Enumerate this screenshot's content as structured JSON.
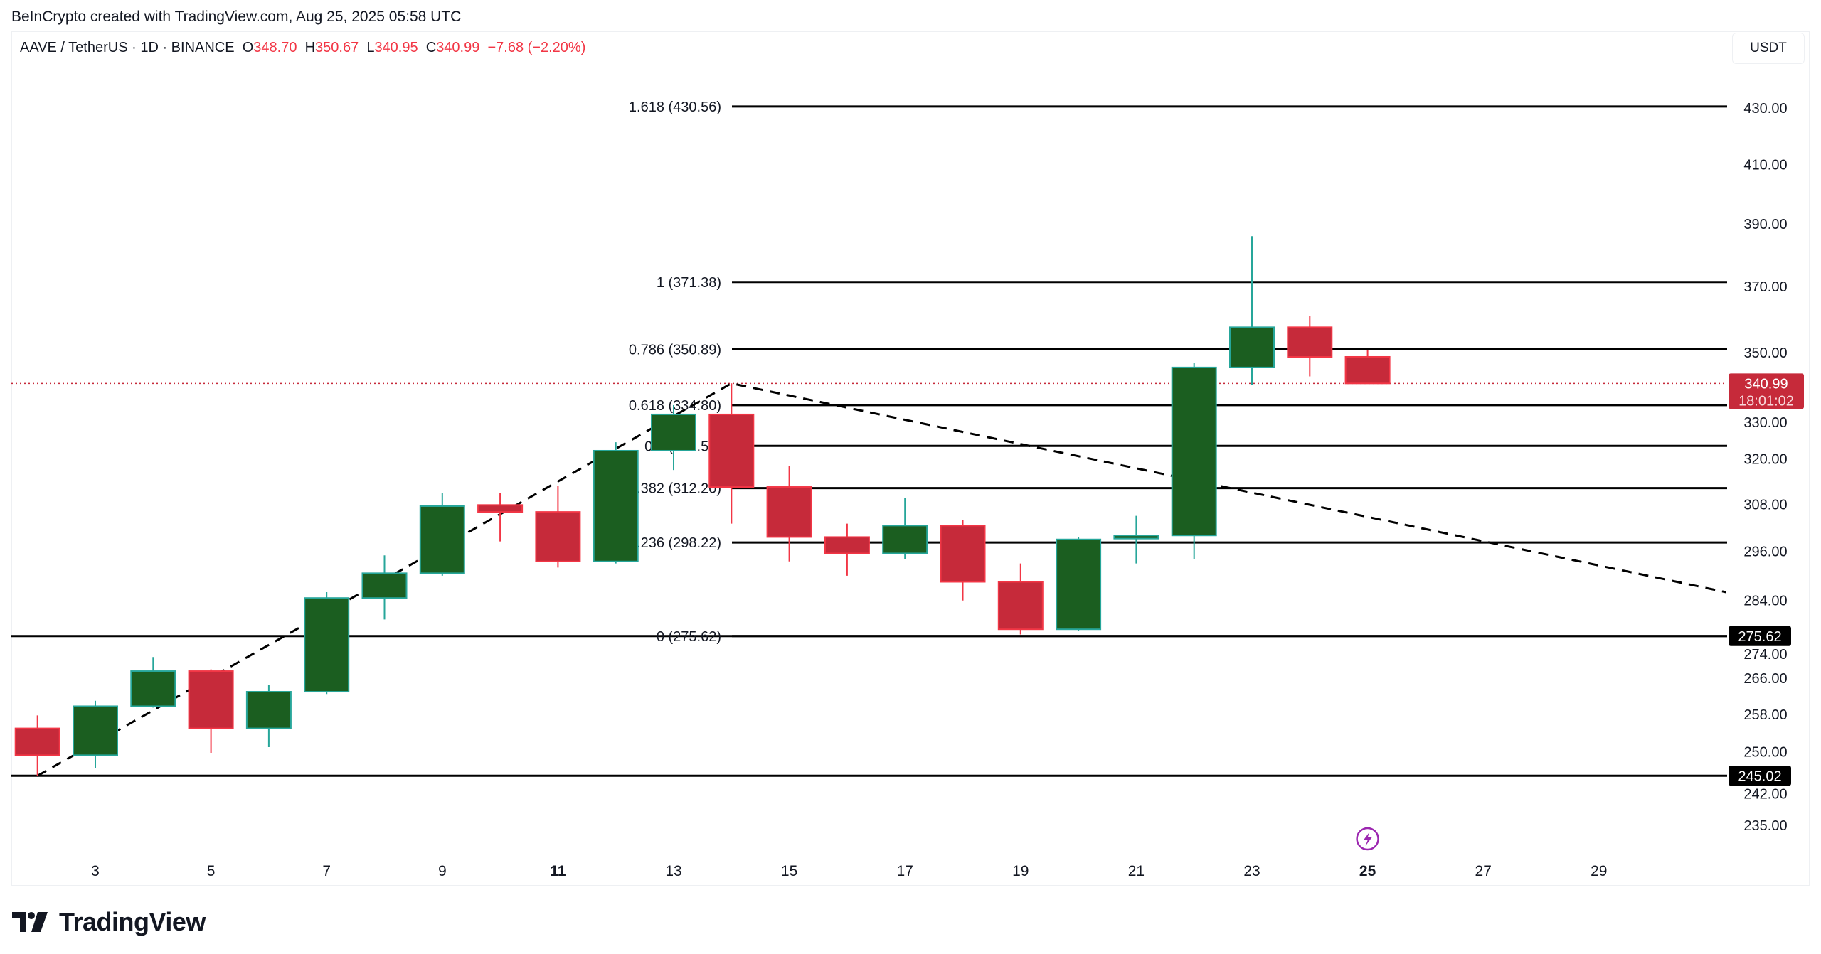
{
  "credit": "BeInCrypto created with TradingView.com, Aug 25, 2025 05:58 UTC",
  "legend": {
    "symbol": "AAVE / TetherUS · 1D · BINANCE",
    "o_label": "O",
    "o": "348.70",
    "h_label": "H",
    "h": "350.67",
    "l_label": "L",
    "l": "340.95",
    "c_label": "C",
    "c": "340.99",
    "change": "−7.68 (−2.20%)"
  },
  "currency_button": "USDT",
  "logo": "TradingView",
  "chart_data": {
    "type": "candlestick",
    "scale": "log",
    "ylim": [
      232,
      440
    ],
    "yticks": [
      "430.00",
      "410.00",
      "390.00",
      "370.00",
      "350.00",
      "330.00",
      "320.00",
      "308.00",
      "296.00",
      "284.00",
      "274.00",
      "266.00",
      "258.00",
      "250.00",
      "242.00",
      "235.00"
    ],
    "xticks": [
      {
        "label": "3",
        "day": 3
      },
      {
        "label": "5",
        "day": 5
      },
      {
        "label": "7",
        "day": 7
      },
      {
        "label": "9",
        "day": 9
      },
      {
        "label": "11",
        "day": 11,
        "bold": true
      },
      {
        "label": "13",
        "day": 13
      },
      {
        "label": "15",
        "day": 15
      },
      {
        "label": "17",
        "day": 17
      },
      {
        "label": "19",
        "day": 19
      },
      {
        "label": "21",
        "day": 21
      },
      {
        "label": "23",
        "day": 23
      },
      {
        "label": "25",
        "day": 25,
        "bold": true
      },
      {
        "label": "27",
        "day": 27
      },
      {
        "label": "29",
        "day": 29
      }
    ],
    "colors": {
      "up": "#1b5e20",
      "up_border": "#26a69a",
      "down": "#c62a3a",
      "down_wick": "#f23645",
      "text": "#131722"
    },
    "candles": [
      {
        "day": 2,
        "o": 255.0,
        "h": 257.8,
        "l": 245.0,
        "c": 249.3
      },
      {
        "day": 3,
        "o": 249.3,
        "h": 261.0,
        "l": 246.6,
        "c": 259.8
      },
      {
        "day": 4,
        "o": 259.8,
        "h": 270.8,
        "l": 259.5,
        "c": 267.6
      },
      {
        "day": 5,
        "o": 267.6,
        "h": 268.0,
        "l": 249.8,
        "c": 255.0
      },
      {
        "day": 6,
        "o": 255.0,
        "h": 264.5,
        "l": 251.0,
        "c": 263.0
      },
      {
        "day": 7,
        "o": 263.0,
        "h": 286.0,
        "l": 262.5,
        "c": 284.6
      },
      {
        "day": 8,
        "o": 284.6,
        "h": 295.0,
        "l": 279.5,
        "c": 290.6
      },
      {
        "day": 9,
        "o": 290.6,
        "h": 311.0,
        "l": 290.0,
        "c": 307.5
      },
      {
        "day": 10,
        "o": 307.8,
        "h": 311.0,
        "l": 298.5,
        "c": 306.0
      },
      {
        "day": 11,
        "o": 306.0,
        "h": 312.8,
        "l": 292.0,
        "c": 293.5
      },
      {
        "day": 12,
        "o": 293.5,
        "h": 324.5,
        "l": 293.0,
        "c": 322.2
      },
      {
        "day": 13,
        "o": 322.2,
        "h": 334.8,
        "l": 317.0,
        "c": 332.2
      },
      {
        "day": 14,
        "o": 332.2,
        "h": 341.0,
        "l": 303.0,
        "c": 312.5
      },
      {
        "day": 15,
        "o": 312.5,
        "h": 318.0,
        "l": 293.5,
        "c": 299.6
      },
      {
        "day": 16,
        "o": 299.6,
        "h": 303.0,
        "l": 290.0,
        "c": 295.5
      },
      {
        "day": 17,
        "o": 295.5,
        "h": 309.7,
        "l": 294.0,
        "c": 302.5
      },
      {
        "day": 18,
        "o": 302.5,
        "h": 304.0,
        "l": 284.0,
        "c": 288.5
      },
      {
        "day": 19,
        "o": 288.5,
        "h": 293.0,
        "l": 276.0,
        "c": 277.2
      },
      {
        "day": 20,
        "o": 277.2,
        "h": 299.5,
        "l": 276.8,
        "c": 299.0
      },
      {
        "day": 21,
        "o": 299.2,
        "h": 305.0,
        "l": 293.0,
        "c": 300.0
      },
      {
        "day": 22,
        "o": 300.0,
        "h": 347.0,
        "l": 294.0,
        "c": 345.6
      },
      {
        "day": 23,
        "o": 345.6,
        "h": 386.0,
        "l": 340.6,
        "c": 357.5
      },
      {
        "day": 24,
        "o": 357.5,
        "h": 361.0,
        "l": 343.0,
        "c": 348.7
      },
      {
        "day": 25,
        "o": 348.7,
        "h": 350.67,
        "l": 340.95,
        "c": 340.99
      }
    ],
    "fib_levels": [
      {
        "label": "1.618 (430.56)",
        "value": 430.56
      },
      {
        "label": "1 (371.38)",
        "value": 371.38
      },
      {
        "label": "0.786 (350.89)",
        "value": 350.89
      },
      {
        "label": "0.618 (334.80)",
        "value": 334.8
      },
      {
        "label": "0.5 (323.50)",
        "value": 323.5
      },
      {
        "label": "0.382 (312.20)",
        "value": 312.2
      },
      {
        "label": "0.236 (298.22)",
        "value": 298.22
      },
      {
        "label": "0 (275.62)",
        "value": 275.62
      }
    ],
    "horizontal_lines": [
      {
        "value": 275.62,
        "label": "275.62"
      },
      {
        "value": 245.02,
        "label": "245.02"
      }
    ],
    "trend_line": [
      {
        "day": 2,
        "price": 245.02
      },
      {
        "day": 14,
        "price": 341.0
      },
      {
        "day": 31.2,
        "price": 286.0
      }
    ],
    "last_price": {
      "value": 340.99,
      "label": "340.99",
      "countdown": "18:01:02",
      "color": "#c62a3a"
    },
    "event_icon": {
      "name": "lightning-icon",
      "day": 25,
      "color": "#9c27b0"
    }
  }
}
